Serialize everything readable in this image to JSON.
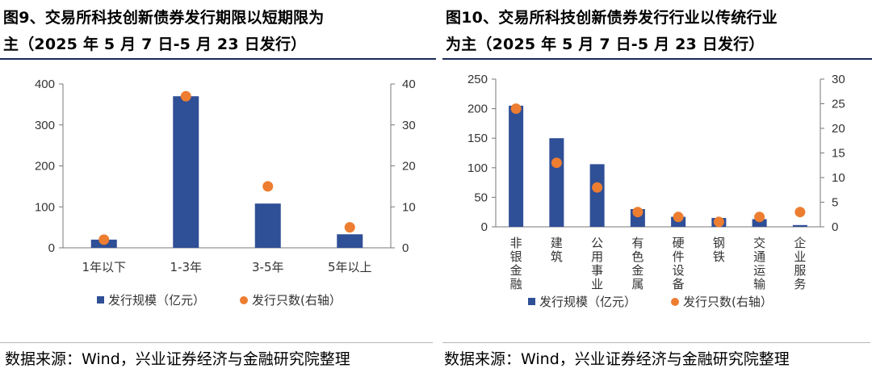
{
  "figures": [
    {
      "title_line1": "图9、交易所科技创新债券发行期限以短期限为",
      "title_line2": "主（2025 年 5 月 7 日-5 月 23 日发行）",
      "source": "数据来源：Wind，兴业证券经济与金融研究院整理"
    },
    {
      "title_line1": "图10、交易所科技创新债券发行行业以传统行业",
      "title_line2": "为主（2025 年 5 月 7 日-5 月 23 日发行）",
      "source": "数据来源：Wind，兴业证券经济与金融研究院整理"
    }
  ],
  "colors": {
    "bar": "#2f4f96",
    "dot": "#ed7d31",
    "rule": "#1a2a55"
  },
  "chart_data": [
    {
      "type": "bar",
      "categories": [
        "1年以下",
        "1-3年",
        "3-5年",
        "5年以上"
      ],
      "series": [
        {
          "name": "发行规模（亿元）",
          "axis": "left",
          "kind": "bar",
          "values": [
            20,
            370,
            108,
            33
          ]
        },
        {
          "name": "发行只数(右轴）",
          "axis": "right",
          "kind": "scatter",
          "values": [
            2,
            37,
            15,
            5
          ]
        }
      ],
      "ylim_left": [
        0,
        400
      ],
      "yticks_left": [
        "0",
        "100",
        "200",
        "300",
        "400"
      ],
      "ylim_right": [
        0,
        40
      ],
      "yticks_right": [
        "0",
        "10",
        "20",
        "30",
        "40"
      ],
      "legend": "bottom"
    },
    {
      "type": "bar",
      "categories": [
        "非银金融",
        "建筑",
        "公用事业",
        "有色金属",
        "硬件设备",
        "钢铁",
        "交通运输",
        "企业服务"
      ],
      "series": [
        {
          "name": "发行规模（亿元）",
          "axis": "left",
          "kind": "bar",
          "values": [
            205,
            150,
            106,
            30,
            17,
            15,
            13,
            3
          ]
        },
        {
          "name": "发行只数(右轴）",
          "axis": "right",
          "kind": "scatter",
          "values": [
            24,
            13,
            8,
            3,
            2,
            1,
            2,
            3
          ]
        }
      ],
      "ylim_left": [
        0,
        250
      ],
      "yticks_left": [
        "0",
        "50",
        "100",
        "150",
        "200",
        "250"
      ],
      "ylim_right": [
        0,
        30
      ],
      "yticks_right": [
        "0",
        "5",
        "10",
        "15",
        "20",
        "25",
        "30"
      ],
      "legend": "bottom"
    }
  ]
}
